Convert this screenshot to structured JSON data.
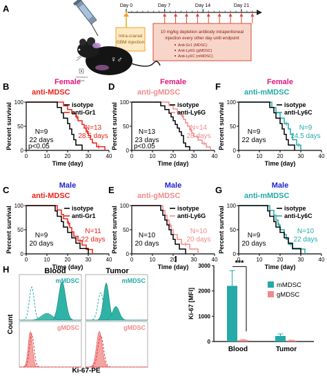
{
  "colors": {
    "female": "#e0177d",
    "male": "#1f1fd6",
    "mdsc": "#e8231b",
    "gmdsc": "#f08a8a",
    "mmdsc": "#25a9a9",
    "isotype": "#000000",
    "box_fill": "#f7d6c9",
    "box_stroke": "#d94a3a",
    "arrow_orange": "#f0a020"
  },
  "panel_a": {
    "letter": "A",
    "days": [
      "Day 0",
      "Day 7",
      "Day 14",
      "Day 21"
    ],
    "injection_text": [
      "Intra-cranial",
      "GBM injection"
    ],
    "box_text": [
      "10 mg/kg depletion antibody intraperitoneal",
      "injection every other day until endpoint"
    ],
    "box_list": [
      "Anti-Gr1 (MDSC)",
      "Anti-Ly6G (gMDSC)",
      "Anti-Ly6C (mMDSC)"
    ],
    "logo_text": [
      "Cleveland",
      "Clinic"
    ],
    "sex_symbol": "♀♂"
  },
  "survival_axes": {
    "ylabel": "Percent survival",
    "xlabel": "Time (day)",
    "yticks": [
      "0",
      "50",
      "100"
    ],
    "xticks": [
      "0",
      "10",
      "20",
      "30",
      "40"
    ],
    "xlim": [
      0,
      40
    ],
    "ylim": [
      0,
      100
    ]
  },
  "survival_panels": [
    {
      "id": "B",
      "letter": "B",
      "sex": "Female",
      "sex_color": "female",
      "title": "anti-MDSC",
      "title_color": "mdsc",
      "legend": [
        "isotype",
        "anti-Gr1"
      ],
      "ctrl_text": [
        "N=9",
        "22 days"
      ],
      "treat_text": [
        "N=13",
        "28.5 days"
      ],
      "pval": "p<0.05",
      "ctrl_x": [
        0,
        15,
        17,
        18,
        20,
        21,
        22,
        23,
        24,
        25,
        27
      ],
      "ctrl_y": [
        100,
        88.9,
        77.8,
        66.7,
        55.6,
        44.4,
        33.3,
        22.2,
        11.1,
        11.1,
        0
      ],
      "treat_x": [
        0,
        18,
        20,
        22,
        24,
        25,
        27,
        28,
        29,
        30,
        31,
        32,
        34,
        36,
        38
      ],
      "treat_y": [
        100,
        92.3,
        84.6,
        76.9,
        69.2,
        61.5,
        53.8,
        46.2,
        38.5,
        30.8,
        23.1,
        15.4,
        7.7,
        7.7,
        0
      ]
    },
    {
      "id": "D",
      "letter": "D",
      "sex": "Female",
      "sex_color": "female",
      "title": "anti-gMDSC",
      "title_color": "gmdsc",
      "legend": [
        "isotype",
        "anti-Ly6G"
      ],
      "ctrl_text": [
        "N=13",
        "23 days"
      ],
      "treat_text": [
        "N=14",
        "28 days"
      ],
      "pval": "p<0.05",
      "ctrl_x": [
        0,
        14,
        16,
        18,
        19,
        20,
        21,
        22,
        23,
        24,
        25,
        26,
        28
      ],
      "ctrl_y": [
        100,
        92.3,
        84.6,
        76.9,
        69.2,
        61.5,
        53.8,
        46.2,
        38.5,
        30.8,
        15.4,
        7.7,
        0
      ],
      "treat_x": [
        0,
        18,
        20,
        22,
        24,
        25,
        26,
        27,
        28,
        29,
        30,
        32,
        34,
        36,
        38
      ],
      "treat_y": [
        100,
        92.9,
        85.7,
        78.6,
        71.4,
        64.3,
        57.1,
        50,
        42.9,
        35.7,
        28.6,
        21.4,
        14.3,
        7.1,
        0
      ]
    },
    {
      "id": "F",
      "letter": "F",
      "sex": "Female",
      "sex_color": "female",
      "title": "anti-mMDSC",
      "title_color": "mmdsc",
      "legend": [
        "isotype",
        "anti-Ly6C"
      ],
      "ctrl_text": [
        "N=9",
        "22 days"
      ],
      "treat_text": [
        "N=9",
        "24.5 days"
      ],
      "pval": "",
      "ctrl_x": [
        0,
        15,
        17,
        18,
        20,
        21,
        22,
        23,
        24,
        25,
        27
      ],
      "ctrl_y": [
        100,
        88.9,
        77.8,
        66.7,
        55.6,
        44.4,
        33.3,
        22.2,
        11.1,
        11.1,
        0
      ],
      "treat_x": [
        0,
        16,
        18,
        20,
        22,
        24,
        25,
        26,
        28,
        30
      ],
      "treat_y": [
        100,
        88.9,
        77.8,
        66.7,
        55.6,
        44.4,
        33.3,
        22.2,
        11.1,
        0
      ]
    },
    {
      "id": "C",
      "letter": "C",
      "sex": "Male",
      "sex_color": "male",
      "title": "anti-MDSC",
      "title_color": "mdsc",
      "legend": [
        "isotype",
        "anti-Gr1"
      ],
      "ctrl_text": [
        "N=9",
        "20 days"
      ],
      "treat_text": [
        "N=11",
        "22 days"
      ],
      "pval": "",
      "ctrl_x": [
        0,
        14,
        15,
        17,
        18,
        20,
        22,
        24,
        26,
        30
      ],
      "ctrl_y": [
        100,
        88.9,
        77.8,
        66.7,
        55.6,
        44.4,
        33.3,
        22.2,
        11.1,
        0
      ],
      "treat_x": [
        0,
        15,
        17,
        18,
        20,
        21,
        22,
        23,
        25,
        27,
        29,
        32
      ],
      "treat_y": [
        100,
        90.9,
        81.8,
        72.7,
        63.6,
        54.5,
        45.5,
        36.4,
        27.3,
        18.2,
        9.1,
        0
      ]
    },
    {
      "id": "E",
      "letter": "E",
      "sex": "Male",
      "sex_color": "male",
      "title": "anti-gMDSC",
      "title_color": "gmdsc",
      "legend": [
        "isotype",
        "anti-Ly6G"
      ],
      "ctrl_text": [
        "N=10",
        "20 days"
      ],
      "treat_text": [
        "N=10",
        "20 days"
      ],
      "pval": "",
      "ctrl_x": [
        0,
        14,
        15,
        16,
        17,
        18,
        19,
        20,
        21,
        23,
        26
      ],
      "ctrl_y": [
        100,
        90,
        80,
        70,
        60,
        50,
        40,
        30,
        20,
        10,
        0
      ],
      "treat_x": [
        0,
        15,
        16,
        17,
        18,
        19,
        20,
        22,
        24,
        28,
        32
      ],
      "treat_y": [
        100,
        90,
        80,
        70,
        60,
        50,
        40,
        30,
        20,
        10,
        0
      ]
    },
    {
      "id": "G",
      "letter": "G",
      "sex": "Male",
      "sex_color": "male",
      "title": "anti-mMDSC",
      "title_color": "mmdsc",
      "legend": [
        "isotype",
        "anti-Ly6C"
      ],
      "ctrl_text": [
        "N=9",
        "20 days"
      ],
      "treat_text": [
        "N=10",
        "22 days"
      ],
      "pval": "",
      "ctrl_x": [
        0,
        14,
        15,
        17,
        18,
        20,
        22,
        24,
        26,
        30
      ],
      "ctrl_y": [
        100,
        88.9,
        77.8,
        66.7,
        55.6,
        44.4,
        33.3,
        22.2,
        11.1,
        0
      ],
      "treat_x": [
        0,
        15,
        17,
        18,
        19,
        20,
        22,
        23,
        24,
        26,
        32
      ],
      "treat_y": [
        100,
        90,
        80,
        70,
        60,
        50,
        40,
        30,
        20,
        10,
        0
      ]
    }
  ],
  "panel_h": {
    "letter": "H",
    "columns": [
      "Blood",
      "Tumor"
    ],
    "row_labels": [
      "mMDSC",
      "gMDSC"
    ],
    "ylabel": "Count",
    "xlabel": "Ki-67-PE"
  },
  "chart_data": {
    "type": "bar",
    "letter": "I",
    "categories": [
      "Blood",
      "Tumor"
    ],
    "series": [
      {
        "name": "mMDSC",
        "values": [
          2200,
          220
        ],
        "errors": [
          600,
          80
        ]
      },
      {
        "name": "gMDSC",
        "values": [
          60,
          40
        ],
        "errors": [
          20,
          15
        ]
      }
    ],
    "ylabel": "Ki-67 [MFI]",
    "yticks": [
      "0",
      "1000",
      "2000",
      "3000"
    ],
    "ylim": [
      0,
      3000
    ],
    "significance": "***",
    "legend_position": "top-right",
    "grid": false
  }
}
